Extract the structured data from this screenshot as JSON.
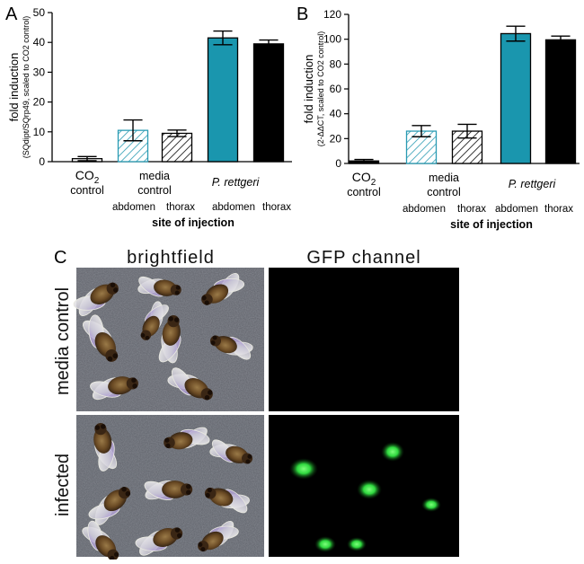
{
  "panels": {
    "A": "A",
    "B": "B",
    "C": "C"
  },
  "colors": {
    "teal": "#1a96ae",
    "black": "#000000",
    "hatch_teal": "#2a9bb3",
    "gfp_green": "#38e04a"
  },
  "chart_data": [
    {
      "panel": "A",
      "type": "bar",
      "categories": [
        "CO2 control",
        "media control abdomen",
        "media control thorax",
        "P. rettgeri abdomen",
        "P. rettgeri thorax"
      ],
      "values": [
        1.0,
        10.5,
        9.5,
        41.5,
        39.5
      ],
      "errors": [
        0.7,
        3.5,
        1.1,
        2.3,
        1.3
      ],
      "fills": [
        "white",
        "hatch-teal",
        "hatch-black",
        "teal",
        "black"
      ],
      "ylim": [
        0,
        50
      ],
      "yticks": [
        0,
        10,
        20,
        30,
        40,
        50
      ],
      "ylabel_main": "fold induction",
      "ylabel_sub": "(SQdipt/SQrp49, scaled to CO2 control)",
      "xlabel": "site of injection",
      "group_labels": [
        {
          "line1": "CO",
          "sub": "2",
          "line2": "control"
        },
        {
          "line1": "media",
          "line2": "control"
        },
        {
          "line1": "P. rettgeri",
          "italic": true
        }
      ],
      "site_labels": [
        "abdomen",
        "thorax",
        "abdomen",
        "thorax"
      ]
    },
    {
      "panel": "B",
      "type": "bar",
      "categories": [
        "CO2 control",
        "media control abdomen",
        "media control thorax",
        "P. rettgeri abdomen",
        "P. rettgeri thorax"
      ],
      "values": [
        2.0,
        26.0,
        26.0,
        104.5,
        99.5
      ],
      "errors": [
        1.2,
        4.5,
        5.5,
        6.0,
        3.0
      ],
      "fills": [
        "black",
        "hatch-teal",
        "hatch-black",
        "teal",
        "black"
      ],
      "ylim": [
        0,
        120
      ],
      "yticks": [
        0,
        20,
        40,
        60,
        80,
        100,
        120
      ],
      "ylabel_main": "fold induction",
      "ylabel_sub": "(2-ΔΔCT, scaled to CO2 control)",
      "xlabel": "site of injection",
      "group_labels": [
        {
          "line1": "CO",
          "sub": "2",
          "line2": "control"
        },
        {
          "line1": "media",
          "line2": "control"
        },
        {
          "line1": "P. rettgeri",
          "italic": true
        }
      ],
      "site_labels": [
        "abdomen",
        "thorax",
        "abdomen",
        "thorax"
      ]
    }
  ],
  "images": {
    "col_headers": [
      "brightfield",
      "GFP channel"
    ],
    "row_labels": [
      "media control",
      "infected"
    ]
  }
}
